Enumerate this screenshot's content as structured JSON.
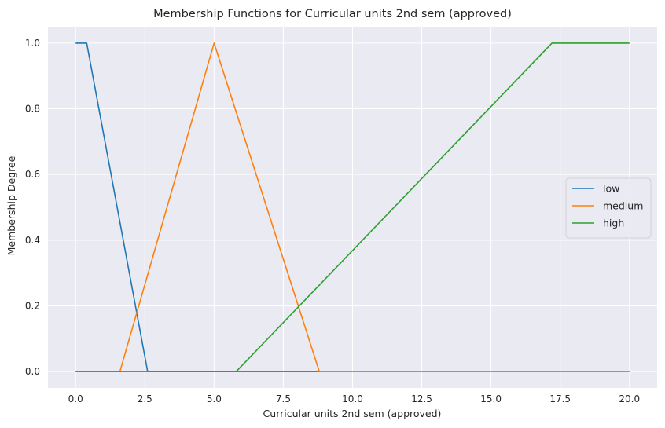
{
  "chart_data": {
    "type": "line",
    "title": "Membership Functions for Curricular units 2nd sem (approved)",
    "xlabel": "Curricular units 2nd sem (approved)",
    "ylabel": "Membership Degree",
    "xlim": [
      -1.0,
      21.0
    ],
    "ylim": [
      -0.05,
      1.05
    ],
    "xticks": [
      0.0,
      2.5,
      5.0,
      7.5,
      10.0,
      12.5,
      15.0,
      17.5,
      20.0
    ],
    "xtick_labels": [
      "0.0",
      "2.5",
      "5.0",
      "7.5",
      "10.0",
      "12.5",
      "15.0",
      "17.5",
      "20.0"
    ],
    "yticks": [
      0.0,
      0.2,
      0.4,
      0.6,
      0.8,
      1.0
    ],
    "ytick_labels": [
      "0.0",
      "0.2",
      "0.4",
      "0.6",
      "0.8",
      "1.0"
    ],
    "grid": true,
    "legend_position": "center-right",
    "series": [
      {
        "name": "low",
        "color": "#1f77b4",
        "x": [
          0.0,
          0.4,
          2.6,
          20.0
        ],
        "y": [
          1.0,
          1.0,
          0.0,
          0.0
        ]
      },
      {
        "name": "medium",
        "color": "#ff7f0e",
        "x": [
          0.0,
          1.6,
          5.0,
          8.8,
          20.0
        ],
        "y": [
          0.0,
          0.0,
          1.0,
          0.0,
          0.0
        ]
      },
      {
        "name": "high",
        "color": "#2ca02c",
        "x": [
          0.0,
          5.8,
          17.2,
          20.0
        ],
        "y": [
          0.0,
          0.0,
          1.0,
          1.0
        ]
      }
    ]
  }
}
